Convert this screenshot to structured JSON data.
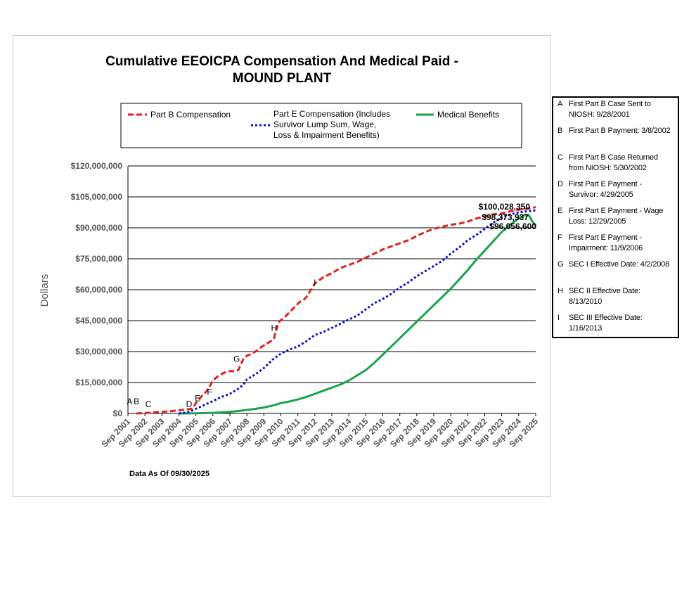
{
  "chart_data": {
    "type": "line",
    "title_line1": "Cumulative EEOICPA Compensation And Medical Paid -",
    "title_line2": "MOUND PLANT",
    "ylabel": "Dollars",
    "ylim": [
      0,
      120000000
    ],
    "yticks": [
      0,
      15000000,
      30000000,
      45000000,
      60000000,
      75000000,
      90000000,
      105000000,
      120000000
    ],
    "ytick_labels": [
      "$0",
      "$15,000,000",
      "$30,000,000",
      "$45,000,000",
      "$60,000,000",
      "$75,000,000",
      "$90,000,000",
      "$105,000,000",
      "$120,000,000"
    ],
    "xlim": [
      2001.0,
      2025.0
    ],
    "xtick_labels": [
      "Sep 2001",
      "Sep 2002",
      "Sep 2003",
      "Sep 2004",
      "Sep 2005",
      "Sep 2006",
      "Sep 2007",
      "Sep 2008",
      "Sep 2009",
      "Sep 2010",
      "Sep 2011",
      "Sep 2012",
      "Sep 2013",
      "Sep 2014",
      "Sep 2015",
      "Sep 2016",
      "Sep 2017",
      "Sep 2018",
      "Sep 2019",
      "Sep 2020",
      "Sep 2021",
      "Sep 2022",
      "Sep 2023",
      "Sep 2024",
      "Sep 2025"
    ],
    "footnote": "Data As Of  09/30/2025",
    "legend": {
      "part_b": "Part B Compensation",
      "part_e_line1": "Part E Compensation (Includes",
      "part_e_line2": "Survivor Lump Sum, Wage,",
      "part_e_line3": "Loss & Impairment Benefits)",
      "medical": "Medical Benefits"
    },
    "colors": {
      "part_b": "#e3201b",
      "part_e": "#1010d0",
      "medical": "#1aa34a"
    },
    "series": [
      {
        "name": "Part B Compensation",
        "x": [
          2001.5,
          2002.0,
          2002.5,
          2003.0,
          2003.5,
          2004.0,
          2004.5,
          2004.8,
          2005.0,
          2005.3,
          2005.6,
          2005.8,
          2006.0,
          2006.3,
          2006.6,
          2006.9,
          2007.2,
          2007.5,
          2007.6,
          2007.8,
          2008.0,
          2008.3,
          2008.6,
          2008.9,
          2009.2,
          2009.5,
          2009.6,
          2009.7,
          2009.9,
          2010.2,
          2010.5,
          2010.8,
          2011.1,
          2011.4,
          2011.5,
          2011.7,
          2012.0,
          2012.5,
          2013.0,
          2013.5,
          2014.0,
          2014.5,
          2015.0,
          2015.5,
          2016.0,
          2016.5,
          2017.0,
          2017.5,
          2018.0,
          2018.5,
          2019.0,
          2019.5,
          2020.0,
          2020.5,
          2021.0,
          2021.5,
          2022.0,
          2022.5,
          2023.0,
          2023.5,
          2024.0,
          2024.5,
          2025.0
        ],
        "values": [
          0,
          200000,
          500000,
          800000,
          1100000,
          1500000,
          2000000,
          2300000,
          5000000,
          8000000,
          10500000,
          13000000,
          16000000,
          18000000,
          19500000,
          20500000,
          20500000,
          21000000,
          23000000,
          26500000,
          28000000,
          29000000,
          30500000,
          32500000,
          34000000,
          35500000,
          36500000,
          40000000,
          44500000,
          46500000,
          49000000,
          51500000,
          54000000,
          55500000,
          56500000,
          59000000,
          63000000,
          66000000,
          68000000,
          70500000,
          72000000,
          73500000,
          75500000,
          77500000,
          79500000,
          81000000,
          82500000,
          84000000,
          86000000,
          88000000,
          89500000,
          90500000,
          91500000,
          92000000,
          93000000,
          94500000,
          95500000,
          96500000,
          97000000,
          98000000,
          98800000,
          99300000,
          100028350
        ]
      },
      {
        "name": "Part E Compensation",
        "x": [
          2004.0,
          2004.5,
          2004.8,
          2005.2,
          2005.6,
          2006.0,
          2006.5,
          2007.0,
          2007.5,
          2007.8,
          2008.0,
          2008.5,
          2009.0,
          2009.5,
          2010.0,
          2010.5,
          2011.0,
          2011.5,
          2012.0,
          2012.5,
          2013.0,
          2013.5,
          2014.0,
          2014.5,
          2015.0,
          2015.5,
          2016.0,
          2016.5,
          2017.0,
          2017.5,
          2018.0,
          2018.5,
          2019.0,
          2019.5,
          2020.0,
          2020.5,
          2021.0,
          2021.5,
          2022.0,
          2022.5,
          2023.0,
          2023.5,
          2024.0,
          2024.5,
          2024.9,
          2025.0
        ],
        "values": [
          0,
          500000,
          1500000,
          3000000,
          4500000,
          6000000,
          8000000,
          9500000,
          12000000,
          14000000,
          16500000,
          19000000,
          22000000,
          26000000,
          29000000,
          31000000,
          32500000,
          35000000,
          38000000,
          39500000,
          41500000,
          43500000,
          45500000,
          47500000,
          50500000,
          53500000,
          55500000,
          58000000,
          61000000,
          63500000,
          66500000,
          69000000,
          71500000,
          74000000,
          77500000,
          80500000,
          84000000,
          86500000,
          89500000,
          92500000,
          95000000,
          96500000,
          97500000,
          98000000,
          98373937,
          98373937
        ]
      },
      {
        "name": "Medical Benefits",
        "x": [
          2004.0,
          2005.0,
          2006.0,
          2006.5,
          2007.0,
          2007.5,
          2008.0,
          2008.5,
          2009.0,
          2009.5,
          2010.0,
          2010.5,
          2011.0,
          2011.5,
          2012.0,
          2012.5,
          2013.0,
          2013.5,
          2014.0,
          2014.5,
          2015.0,
          2015.5,
          2016.0,
          2016.5,
          2017.0,
          2017.5,
          2018.0,
          2018.5,
          2019.0,
          2019.5,
          2020.0,
          2020.5,
          2021.0,
          2021.5,
          2022.0,
          2022.5,
          2023.0,
          2023.5,
          2024.0,
          2024.3,
          2024.6,
          2024.8,
          2024.95,
          2025.0
        ],
        "values": [
          0,
          100000,
          300000,
          500000,
          800000,
          1200000,
          1700000,
          2200000,
          2900000,
          3800000,
          5000000,
          5800000,
          6800000,
          8000000,
          9500000,
          11000000,
          12500000,
          14000000,
          16000000,
          18500000,
          21000000,
          24500000,
          28500000,
          32500000,
          36500000,
          40500000,
          44500000,
          48500000,
          52500000,
          56500000,
          60500000,
          65000000,
          69500000,
          74500000,
          79000000,
          83500000,
          88000000,
          91500000,
          94500000,
          96000000,
          96056600,
          93000000,
          91500000,
          91000000
        ]
      }
    ],
    "value_labels": [
      "$100,028,350",
      "$98,373,937",
      "$96,056,600"
    ],
    "markers": [
      {
        "letter": "A",
        "x": 2001.1,
        "y": 4500000
      },
      {
        "letter": "B",
        "x": 2001.5,
        "y": 4500000
      },
      {
        "letter": "C",
        "x": 2002.2,
        "y": 3000000
      },
      {
        "letter": "D",
        "x": 2004.6,
        "y": 3200000
      },
      {
        "letter": "E",
        "x": 2005.1,
        "y": 6000000
      },
      {
        "letter": "F",
        "x": 2005.8,
        "y": 9000000
      },
      {
        "letter": "G",
        "x": 2007.4,
        "y": 25000000
      },
      {
        "letter": "H",
        "x": 2009.6,
        "y": 40000000
      },
      {
        "letter": "I",
        "x": 2012.0,
        "y": 62000000
      }
    ]
  },
  "notes": [
    {
      "letter": "A",
      "line1": "First Part B Case Sent to",
      "line2": "NIOSH: 9/28/2001"
    },
    {
      "letter": "B",
      "line1": "First Part B Payment: 3/8/2002",
      "line2": ""
    },
    {
      "letter": "C",
      "line1": "First Part B Case Returned",
      "line2": "from NIOSH: 5/30/2002"
    },
    {
      "letter": "D",
      "line1": "First Part E Payment -",
      "line2": "Survivor: 4/29/2005"
    },
    {
      "letter": "E",
      "line1": "First Part E Payment - Wage",
      "line2": "Loss: 12/29/2005"
    },
    {
      "letter": "F",
      "line1": "First Part E Payment -",
      "line2": "Impairment: 11/9/2006"
    },
    {
      "letter": "G",
      "line1": "SEC I Effective Date: 4/2/2008",
      "line2": ""
    },
    {
      "letter": "H",
      "line1": "SEC II Effective Date:",
      "line2": "8/13/2010"
    },
    {
      "letter": "I",
      "line1": "SEC III Effective Date:",
      "line2": "1/16/2013"
    }
  ]
}
